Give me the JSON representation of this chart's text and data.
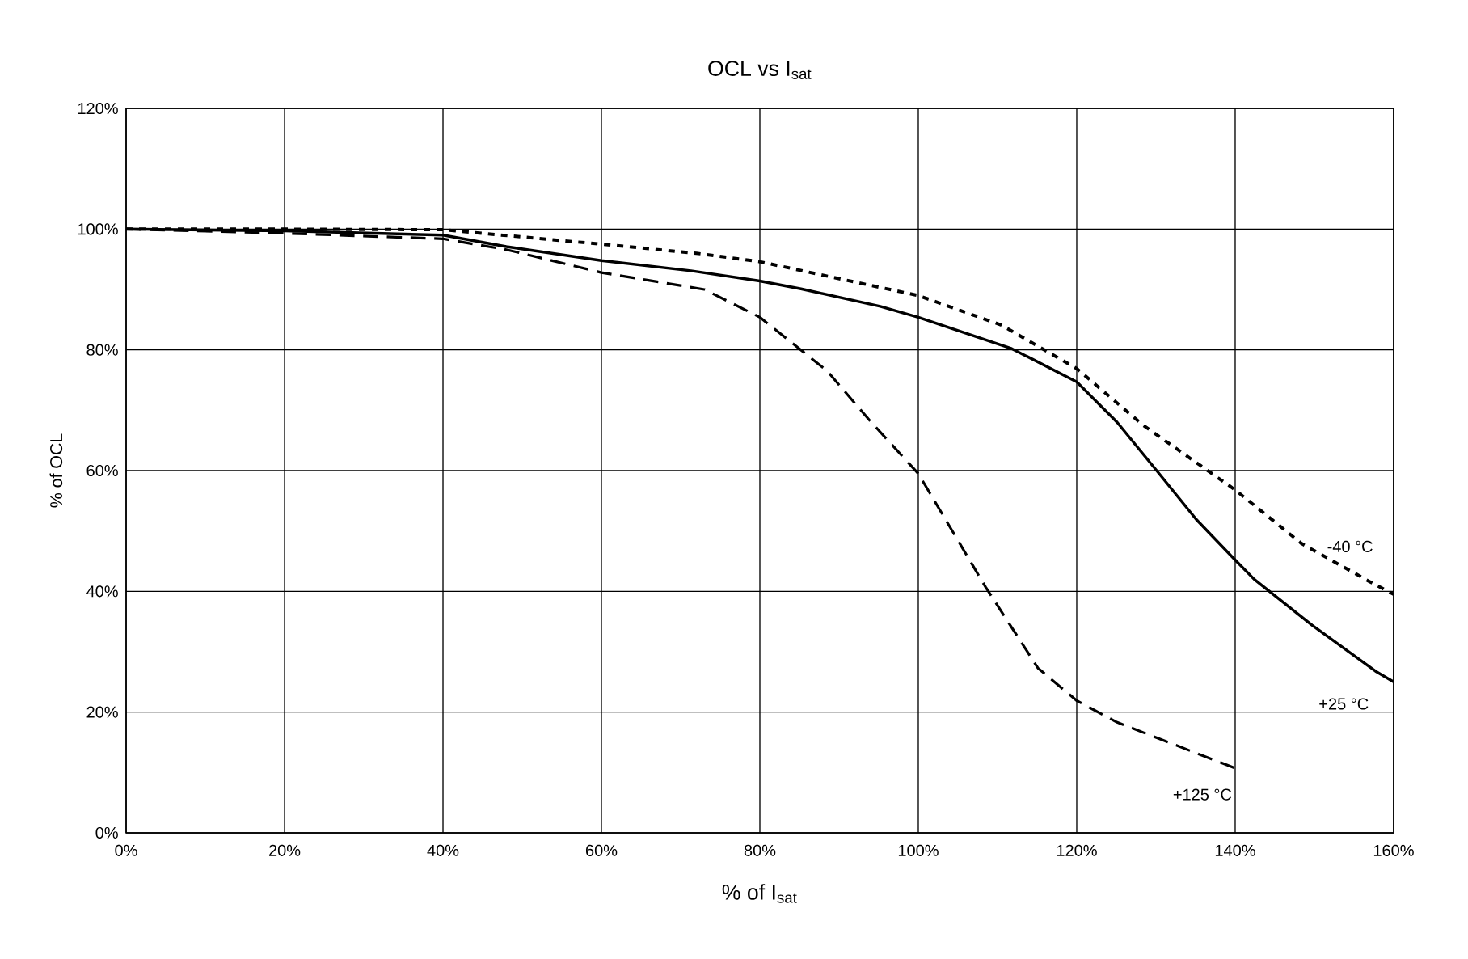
{
  "chart_data": {
    "type": "line",
    "title": "OCL vs I$_{sat}$",
    "xlabel": "% of I$_{sat}$",
    "ylabel": "% of OCL",
    "xlim": [
      0,
      160
    ],
    "ylim": [
      0,
      120
    ],
    "xticks": [
      {
        "value": 0,
        "label": "0%"
      },
      {
        "value": 20,
        "label": "20%"
      },
      {
        "value": 40,
        "label": "40%"
      },
      {
        "value": 60,
        "label": "60%"
      },
      {
        "value": 80,
        "label": "80%"
      },
      {
        "value": 100,
        "label": "100%"
      },
      {
        "value": 120,
        "label": "120%"
      },
      {
        "value": 140,
        "label": "140%"
      },
      {
        "value": 160,
        "label": "160%"
      }
    ],
    "yticks": [
      {
        "value": 0,
        "label": "0%"
      },
      {
        "value": 20,
        "label": "20%"
      },
      {
        "value": 40,
        "label": "40%"
      },
      {
        "value": 60,
        "label": "60%"
      },
      {
        "value": 80,
        "label": "80%"
      },
      {
        "value": 100,
        "label": "100%"
      },
      {
        "value": 120,
        "label": "120%"
      }
    ],
    "grid": true,
    "legend": false,
    "marker": "none",
    "series": [
      {
        "name": "-40 °C",
        "color": "#000000",
        "line_style": "dotted",
        "x": [
          0,
          20,
          40,
          60,
          72,
          80,
          100,
          110.5,
          120,
          128.4,
          140,
          148.4,
          157,
          160
        ],
        "values": [
          100,
          100,
          99.9,
          97.5,
          96,
          94.6,
          89,
          84.1,
          76.9,
          67.5,
          56.8,
          47.9,
          41.6,
          39.5
        ]
      },
      {
        "name": "+25 °C",
        "color": "#000000",
        "line_style": "solid",
        "x": [
          0,
          20,
          40,
          48,
          60,
          71.3,
          80,
          85.2,
          95.2,
          100,
          111.8,
          120,
          125.1,
          130.4,
          135.1,
          140,
          142.4,
          149.7,
          157.7,
          160
        ],
        "values": [
          100,
          99.7,
          99,
          97.1,
          94.8,
          93.1,
          91.4,
          90.1,
          87.2,
          85.4,
          80.2,
          74.7,
          68,
          59.5,
          51.9,
          45.2,
          42,
          34.4,
          26.8,
          25
        ]
      },
      {
        "name": "+125 °C",
        "color": "#000000",
        "line_style": "dashed",
        "x": [
          0,
          20,
          40,
          48,
          60,
          73,
          80,
          88.5,
          93.8,
          100,
          108.5,
          115.1,
          120,
          125.1,
          140
        ],
        "values": [
          100,
          99.3,
          98.4,
          96.6,
          92.8,
          90,
          85.4,
          76.5,
          68.4,
          59.5,
          40.7,
          27.3,
          21.9,
          18.3,
          10.7
        ]
      }
    ]
  }
}
